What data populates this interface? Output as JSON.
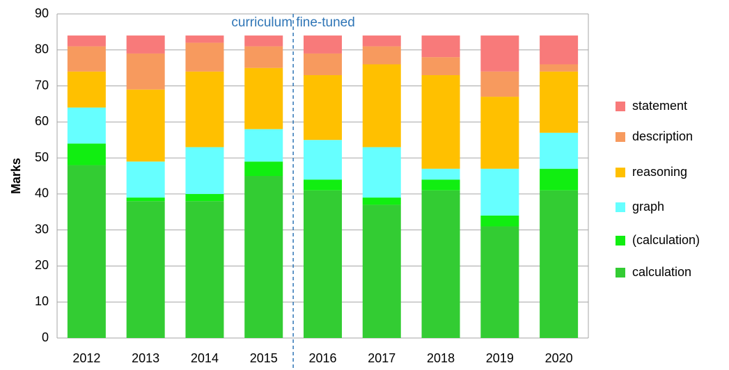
{
  "chart_data": {
    "type": "stacked_bar",
    "annotation": "curriculum fine-tuned",
    "y_label": "Marks",
    "categories": [
      "2012",
      "2013",
      "2014",
      "2015",
      "2016",
      "2017",
      "2018",
      "2019",
      "2020"
    ],
    "series": [
      {
        "name": "calculation",
        "color": "#33cc33",
        "values": [
          48,
          38,
          38,
          45,
          41,
          37,
          41,
          31,
          41
        ]
      },
      {
        "name": "(calculation)",
        "color": "#11ee11",
        "values": [
          6,
          1,
          2,
          4,
          3,
          2,
          3,
          3,
          6
        ]
      },
      {
        "name": "graph",
        "color": "#66ffff",
        "values": [
          10,
          10,
          13,
          9,
          11,
          14,
          3,
          13,
          10
        ]
      },
      {
        "name": "reasoning",
        "color": "#ffc000",
        "values": [
          10,
          20,
          21,
          17,
          18,
          23,
          26,
          20,
          17
        ]
      },
      {
        "name": "description",
        "color": "#f79a5e",
        "values": [
          7,
          10,
          8,
          6,
          6,
          5,
          5,
          7,
          2
        ]
      },
      {
        "name": "statement",
        "color": "#f87a7a",
        "values": [
          3,
          5,
          2,
          3,
          5,
          3,
          6,
          10,
          8
        ]
      }
    ],
    "ylim": [
      0,
      90
    ],
    "yticks": [
      0,
      10,
      20,
      30,
      40,
      50,
      60,
      70,
      80,
      90
    ],
    "grid": true
  }
}
